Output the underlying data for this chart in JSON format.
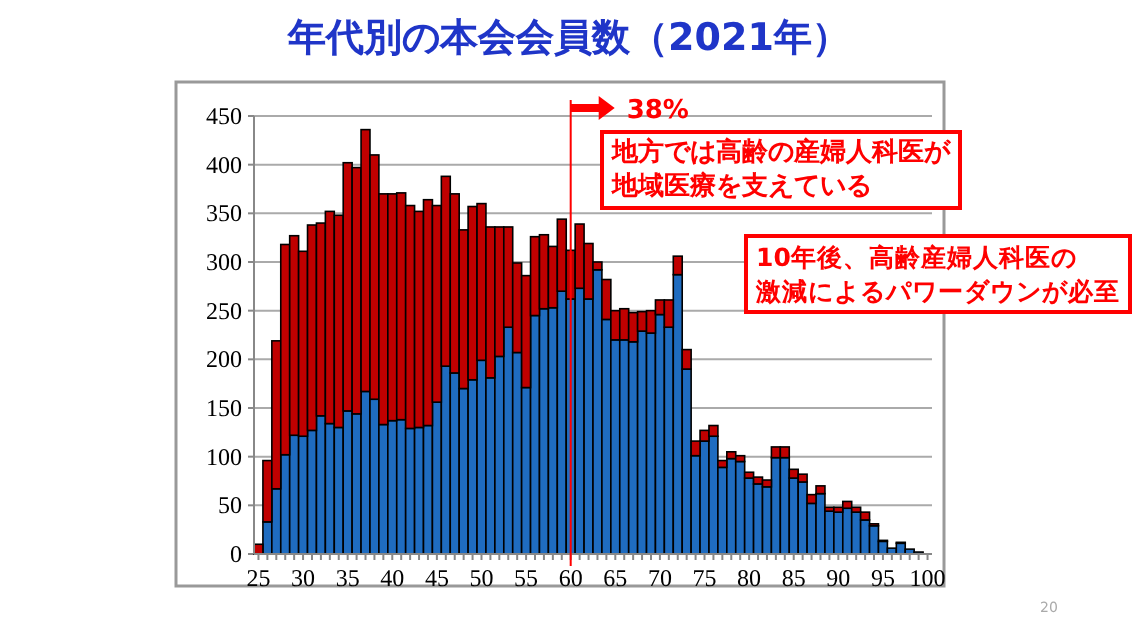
{
  "chart_data": {
    "type": "bar",
    "title": "年代別の本会会員数（2021年）",
    "stacked": true,
    "grid": "y",
    "x": [
      25,
      26,
      27,
      28,
      29,
      30,
      31,
      32,
      33,
      34,
      35,
      36,
      37,
      38,
      39,
      40,
      41,
      42,
      43,
      44,
      45,
      46,
      47,
      48,
      49,
      50,
      51,
      52,
      53,
      54,
      55,
      56,
      57,
      58,
      59,
      60,
      61,
      62,
      63,
      64,
      65,
      66,
      67,
      68,
      69,
      70,
      71,
      72,
      73,
      74,
      75,
      76,
      77,
      78,
      79,
      80,
      81,
      82,
      83,
      84,
      85,
      86,
      87,
      88,
      89,
      90,
      91,
      92,
      93,
      94,
      95,
      96,
      97,
      98,
      99
    ],
    "xlim": [
      24.5,
      100.5
    ],
    "xticks": [
      25,
      30,
      35,
      40,
      45,
      50,
      55,
      60,
      65,
      70,
      75,
      80,
      85,
      90,
      95,
      100
    ],
    "ylim": [
      0,
      450
    ],
    "yticks": [
      0,
      50,
      100,
      150,
      200,
      250,
      300,
      350,
      400,
      450
    ],
    "series": [
      {
        "color": "#1f6cc0",
        "values": [
          null,
          33,
          67,
          102,
          122,
          121,
          127,
          142,
          134,
          130,
          147,
          144,
          167,
          159,
          133,
          137,
          138,
          129,
          130,
          132,
          156,
          193,
          186,
          170,
          179,
          199,
          181,
          203,
          233,
          207,
          171,
          245,
          252,
          253,
          270,
          262,
          273,
          262,
          292,
          241,
          220,
          220,
          218,
          229,
          227,
          246,
          233,
          287,
          190,
          101,
          116,
          121,
          89,
          98,
          95,
          78,
          72,
          69,
          99,
          99,
          78,
          74,
          52,
          62,
          44,
          43,
          47,
          43,
          35,
          29,
          13,
          6,
          11,
          5,
          2
        ]
      },
      {
        "color": "#c00000",
        "values": [
          10,
          63,
          152,
          216,
          205,
          190,
          211,
          198,
          218,
          218,
          255,
          253,
          269,
          251,
          237,
          233,
          233,
          229,
          222,
          232,
          202,
          195,
          184,
          163,
          178,
          161,
          155,
          133,
          103,
          92,
          115,
          81,
          76,
          63,
          74,
          50,
          66,
          57,
          8,
          41,
          30,
          32,
          30,
          20,
          23,
          15,
          28,
          19,
          20,
          15,
          11,
          11,
          7,
          7,
          6,
          6,
          7,
          7,
          11,
          11,
          9,
          8,
          9,
          8,
          4,
          5,
          7,
          5,
          8,
          2,
          1,
          0,
          1,
          0,
          0
        ]
      }
    ],
    "ref_lines": [
      {
        "axis": "x",
        "value": 60,
        "color": "#ff0000"
      }
    ],
    "annotations": [
      {
        "text": "38%",
        "x": 60,
        "y": 450
      },
      "地方では高齢の産婦人科医が地域医療を支えている",
      "10年後、高齢産婦人科医の激減によるパワーダウンが必至",
      "20"
    ]
  }
}
